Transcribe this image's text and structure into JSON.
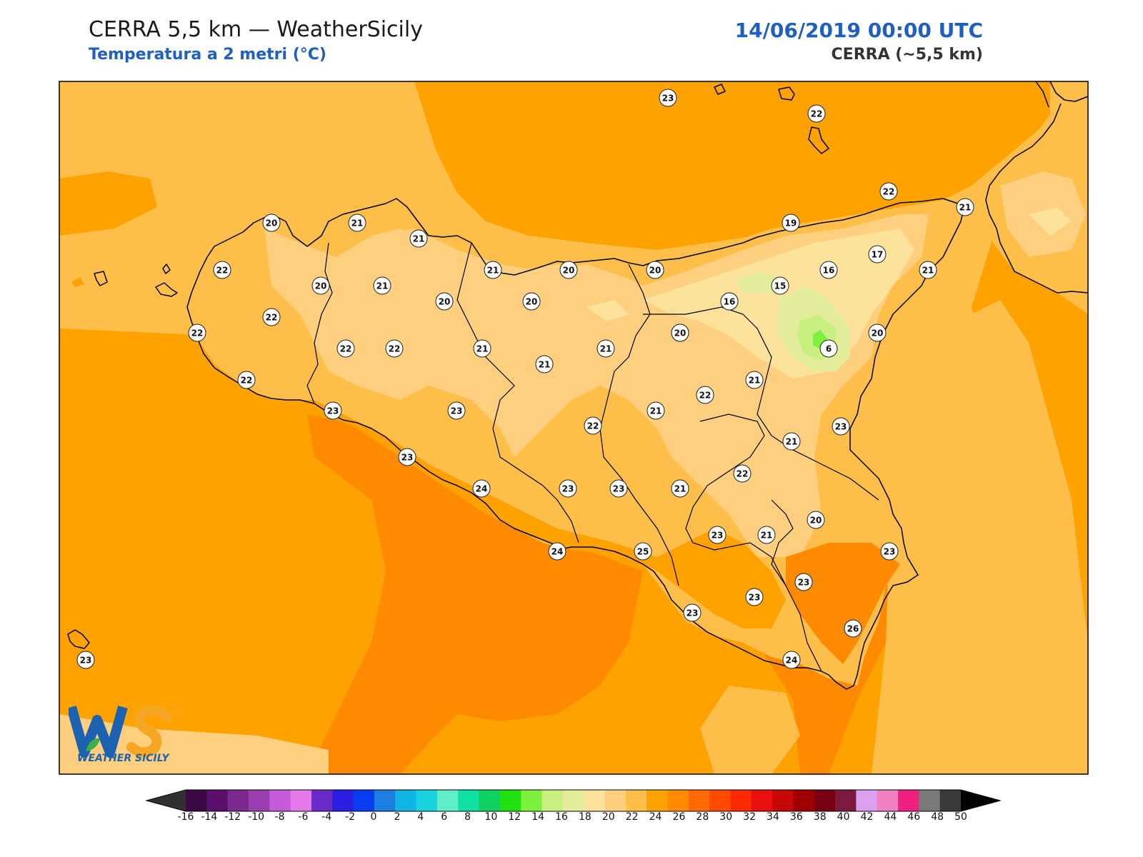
{
  "header": {
    "title": "CERRA 5,5 km — WeatherSicily",
    "subtitle": "Temperatura a 2 metri (°C)",
    "datetime": "14/06/2019 00:00 UTC",
    "model": "CERRA (~5,5 km)"
  },
  "colorbar": {
    "ticks": [
      "-16",
      "-14",
      "-12",
      "-10",
      "-8",
      "-6",
      "-4",
      "-2",
      "0",
      "2",
      "4",
      "6",
      "8",
      "10",
      "12",
      "14",
      "16",
      "18",
      "20",
      "22",
      "24",
      "26",
      "28",
      "30",
      "32",
      "34",
      "36",
      "38",
      "40",
      "42",
      "44",
      "46",
      "48",
      "50"
    ],
    "colors": [
      "#3b0a45",
      "#5a0f6b",
      "#7b2a8f",
      "#9a3fb0",
      "#c45bd8",
      "#e47ae8",
      "#6a2bc9",
      "#2a1ee0",
      "#0a3df2",
      "#1c7ee0",
      "#10b5e6",
      "#19d2e0",
      "#5eefc8",
      "#10e0a0",
      "#10d060",
      "#20e010",
      "#7ef040",
      "#c8f080",
      "#e2ec9a",
      "#fde29c",
      "#fdcf7e",
      "#fdbe4a",
      "#fda200",
      "#fd8a00",
      "#fe6a00",
      "#fe4a00",
      "#fe2a00",
      "#e81010",
      "#c80808",
      "#a00000",
      "#780010",
      "#7a1a40",
      "#dca0f0",
      "#f080c0",
      "#f02080",
      "#7a7a7a",
      "#3a3a3a"
    ]
  },
  "logo": {
    "letters": "WS",
    "text": "WEATHER SICILY"
  },
  "map": {
    "city_values": [
      {
        "v": "23"
      },
      {
        "v": "22"
      },
      {
        "v": "22"
      },
      {
        "v": "21"
      },
      {
        "v": "19"
      },
      {
        "v": "20"
      },
      {
        "v": "21"
      },
      {
        "v": "21"
      },
      {
        "v": "22"
      },
      {
        "v": "20"
      },
      {
        "v": "21"
      },
      {
        "v": "20"
      },
      {
        "v": "20"
      },
      {
        "v": "20"
      },
      {
        "v": "17"
      },
      {
        "v": "16"
      },
      {
        "v": "15"
      },
      {
        "v": "21"
      },
      {
        "v": "22"
      },
      {
        "v": "20"
      },
      {
        "v": "21"
      },
      {
        "v": "20"
      },
      {
        "v": "16"
      },
      {
        "v": "20"
      },
      {
        "v": "22"
      },
      {
        "v": "22"
      },
      {
        "v": "22"
      },
      {
        "v": "21"
      },
      {
        "v": "21"
      },
      {
        "v": "21"
      },
      {
        "v": "20"
      },
      {
        "v": "6"
      },
      {
        "v": "20"
      },
      {
        "v": "22"
      },
      {
        "v": "21"
      },
      {
        "v": "22"
      },
      {
        "v": "23"
      },
      {
        "v": "23"
      },
      {
        "v": "21"
      },
      {
        "v": "22"
      },
      {
        "v": "21"
      },
      {
        "v": "23"
      },
      {
        "v": "23"
      },
      {
        "v": "24"
      },
      {
        "v": "23"
      },
      {
        "v": "23"
      },
      {
        "v": "21"
      },
      {
        "v": "22"
      },
      {
        "v": "20"
      },
      {
        "v": "23"
      },
      {
        "v": "21"
      },
      {
        "v": "24"
      },
      {
        "v": "25"
      },
      {
        "v": "23"
      },
      {
        "v": "23"
      },
      {
        "v": "23"
      },
      {
        "v": "23"
      },
      {
        "v": "26"
      },
      {
        "v": "23"
      },
      {
        "v": "24"
      }
    ]
  }
}
